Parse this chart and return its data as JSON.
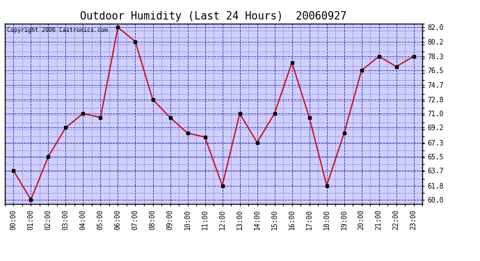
{
  "title": "Outdoor Humidity (Last 24 Hours)  20060927",
  "copyright_text": "Copyright 2006 Castronics.com",
  "x_labels": [
    "00:00",
    "01:00",
    "02:00",
    "03:00",
    "04:00",
    "05:00",
    "06:00",
    "07:00",
    "08:00",
    "09:00",
    "10:00",
    "11:00",
    "12:00",
    "13:00",
    "14:00",
    "15:00",
    "16:00",
    "17:00",
    "18:00",
    "19:00",
    "20:00",
    "21:00",
    "22:00",
    "23:00"
  ],
  "y_values": [
    63.7,
    60.0,
    65.5,
    69.2,
    71.0,
    70.5,
    82.0,
    80.2,
    72.8,
    70.5,
    68.5,
    68.0,
    61.8,
    71.0,
    67.3,
    71.0,
    77.5,
    70.5,
    61.8,
    68.5,
    76.5,
    78.3,
    77.0,
    78.3
  ],
  "y_ticks": [
    60.0,
    61.8,
    63.7,
    65.5,
    67.3,
    69.2,
    71.0,
    72.8,
    74.7,
    76.5,
    78.3,
    80.2,
    82.0
  ],
  "y_min": 59.5,
  "y_max": 82.5,
  "line_color": "#cc0000",
  "marker_color": "#000000",
  "plot_bg_color": "#d0d0ff",
  "grid_color_major": "#2222bb",
  "grid_color_minor": "#6666cc",
  "title_fontsize": 11,
  "tick_fontsize": 7,
  "copyright_fontsize": 6
}
